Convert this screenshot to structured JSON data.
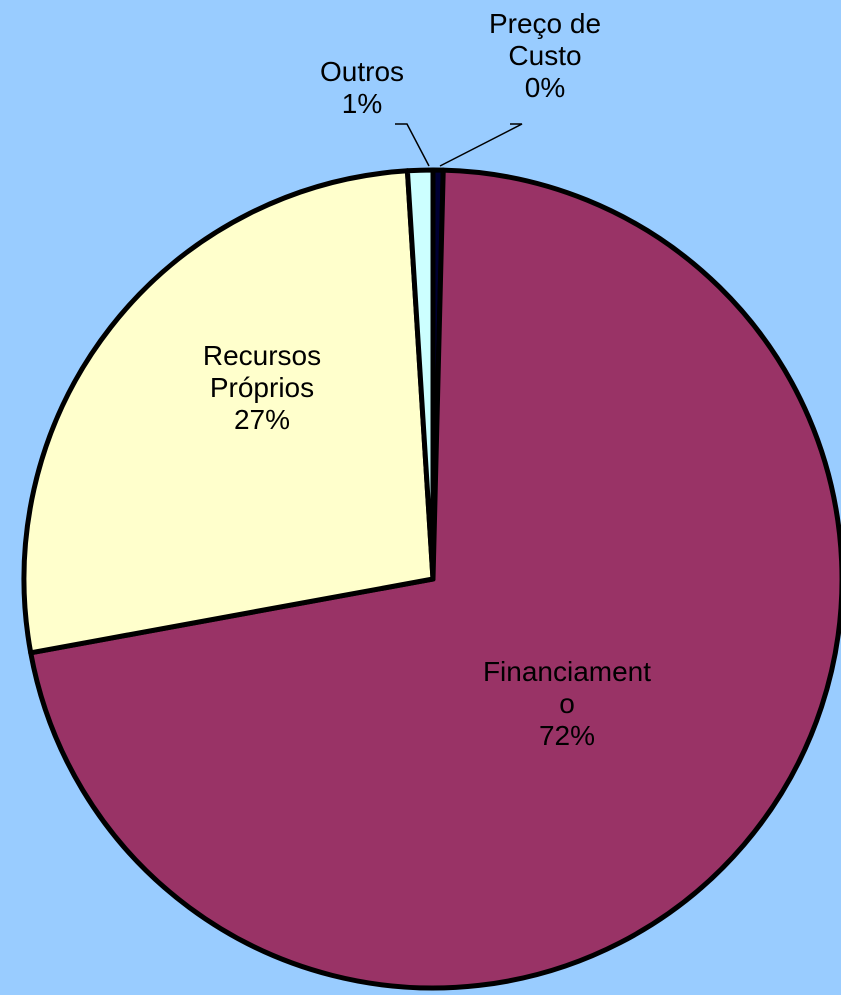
{
  "chart_data": {
    "type": "pie",
    "categories": [
      "Preço de Custo",
      "Financiamento",
      "Recursos Próprios",
      "Outros"
    ],
    "values": [
      0.4,
      72,
      27,
      1
    ],
    "value_labels": [
      "0%",
      "72%",
      "27%",
      "1%"
    ],
    "colors": [
      "#000033",
      "#993366",
      "#ffffcc",
      "#ccffff"
    ],
    "background": "#99ccff"
  }
}
